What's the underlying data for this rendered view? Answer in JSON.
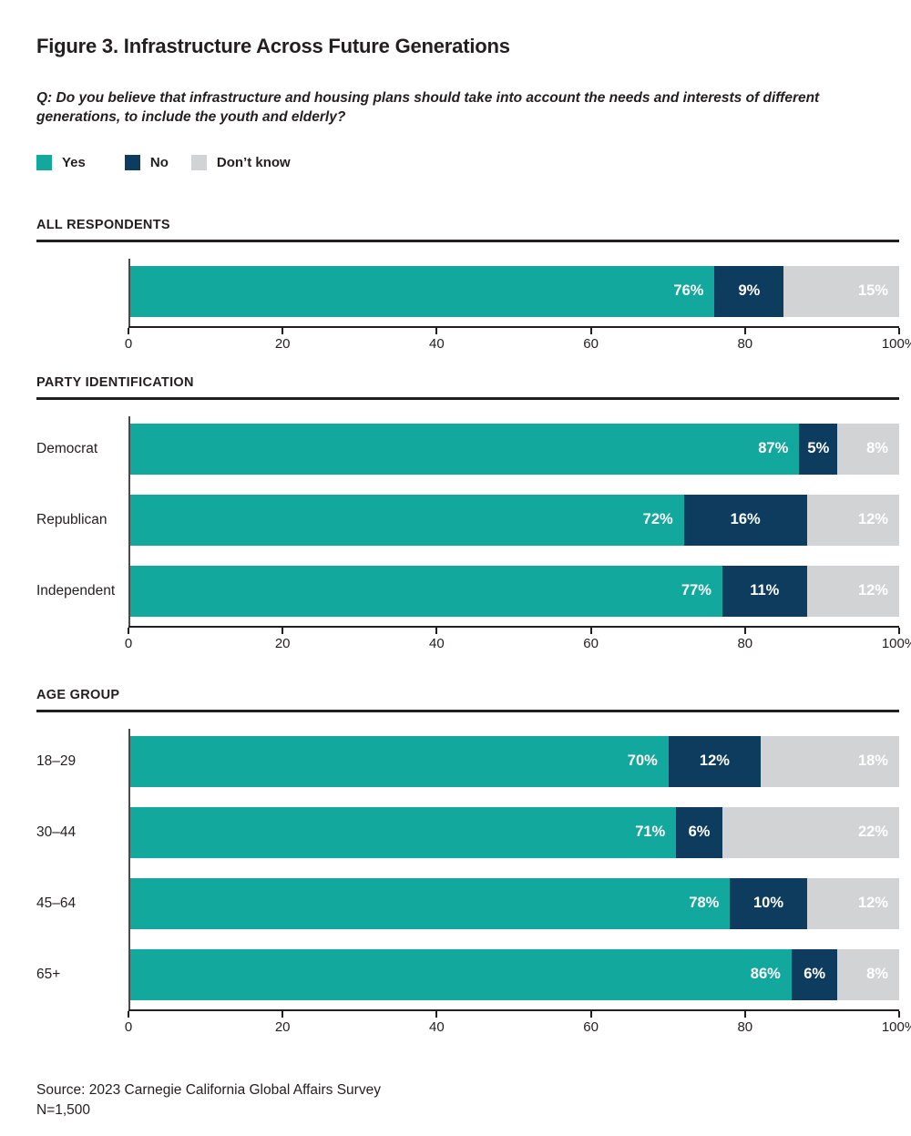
{
  "page": {
    "title": "Figure 3. Infrastructure Across Future Generations",
    "question": "Q: Do you believe that infrastructure and housing plans should take into account the needs and interests of different generations, to include the youth and elderly?",
    "source_line": "Source: 2023 Carnegie California Global Affairs Survey",
    "sample_size": "N=1,500"
  },
  "colors": {
    "yes": "#13A89E",
    "no": "#0D3C5F",
    "dont_know": "#D1D3D4",
    "text": "#231F20",
    "axis": "#231F20"
  },
  "legend": [
    {
      "label": "Yes",
      "key": "yes"
    },
    {
      "label": "No",
      "key": "no"
    },
    {
      "label": "Don’t know",
      "key": "dont_know"
    }
  ],
  "chart_data": [
    {
      "type": "bar",
      "variant": "horizontal-stacked",
      "section": "ALL RESPONDENTS",
      "categories": [
        ""
      ],
      "series": [
        {
          "name": "Yes",
          "values": [
            76
          ]
        },
        {
          "name": "No",
          "values": [
            9
          ]
        },
        {
          "name": "Don't know",
          "values": [
            15
          ]
        }
      ],
      "xlim": [
        0,
        100
      ],
      "x_ticks": [
        0,
        20,
        40,
        60,
        80,
        100
      ],
      "x_tick_labels": [
        "0",
        "20",
        "40",
        "60",
        "80",
        "100%"
      ],
      "value_suffix": "%",
      "grid": false,
      "legend_position": "top"
    },
    {
      "type": "bar",
      "variant": "horizontal-stacked",
      "section": "PARTY IDENTIFICATION",
      "categories": [
        "Democrat",
        "Republican",
        "Independent"
      ],
      "series": [
        {
          "name": "Yes",
          "values": [
            87,
            72,
            77
          ]
        },
        {
          "name": "No",
          "values": [
            5,
            16,
            11
          ]
        },
        {
          "name": "Don't know",
          "values": [
            8,
            12,
            12
          ]
        }
      ],
      "xlim": [
        0,
        100
      ],
      "x_ticks": [
        0,
        20,
        40,
        60,
        80,
        100
      ],
      "x_tick_labels": [
        "0",
        "20",
        "40",
        "60",
        "80",
        "100%"
      ],
      "value_suffix": "%",
      "grid": false,
      "legend_position": "top"
    },
    {
      "type": "bar",
      "variant": "horizontal-stacked",
      "section": "AGE GROUP",
      "categories": [
        "18–29",
        "30–44",
        "45–64",
        "65+"
      ],
      "series": [
        {
          "name": "Yes",
          "values": [
            70,
            71,
            78,
            86
          ]
        },
        {
          "name": "No",
          "values": [
            12,
            6,
            10,
            6
          ]
        },
        {
          "name": "Don't know",
          "values": [
            18,
            22,
            12,
            8
          ]
        }
      ],
      "xlim": [
        0,
        100
      ],
      "x_ticks": [
        0,
        20,
        40,
        60,
        80,
        100
      ],
      "x_tick_labels": [
        "0",
        "20",
        "40",
        "60",
        "80",
        "100%"
      ],
      "value_suffix": "%",
      "grid": false,
      "legend_position": "top"
    }
  ]
}
